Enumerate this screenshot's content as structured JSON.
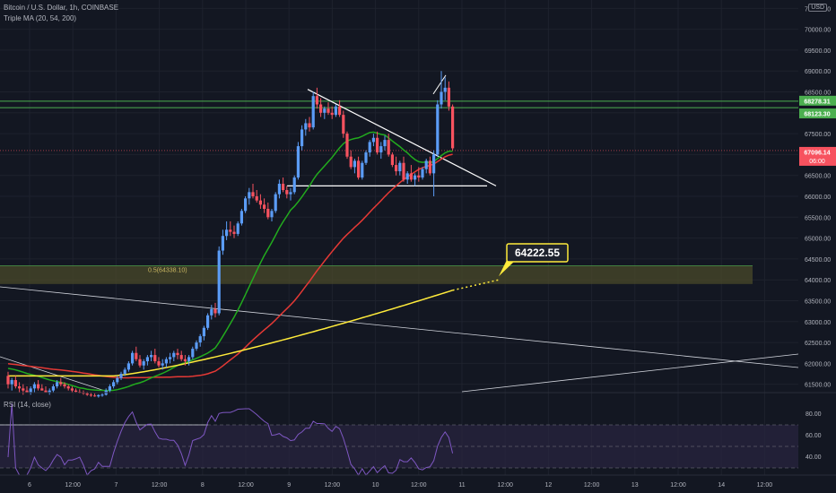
{
  "header": {
    "symbol_line": "Bitcoin / U.S. Dollar, 1h, COINBASE",
    "indicator_line": "Triple MA (20, 54, 200)"
  },
  "currency": "USD",
  "rsi": {
    "label": "RSI (14, close)",
    "ticks": [
      "80.00",
      "60.00",
      "40.00"
    ]
  },
  "chart_data": {
    "type": "candlestick",
    "symbol": "Bitcoin / U.S. Dollar",
    "interval": "1h",
    "exchange": "COINBASE",
    "price_axis": {
      "ticks": [
        "70500.00",
        "70000.00",
        "69500.00",
        "69000.00",
        "68500.00",
        "68000.00",
        "67500.00",
        "67000.00",
        "66500.00",
        "66000.00",
        "65500.00",
        "65000.00",
        "64500.00",
        "64000.00",
        "63500.00",
        "63000.00",
        "62500.00",
        "62000.00",
        "61500.00"
      ],
      "range": [
        61300,
        70700
      ]
    },
    "time_axis": {
      "ticks": [
        "6",
        "12:00",
        "7",
        "12:00",
        "8",
        "12:00",
        "9",
        "12:00",
        "10",
        "12:00",
        "11",
        "12:00",
        "12",
        "12:00",
        "13",
        "12:00",
        "14",
        "12:00"
      ]
    },
    "price_labels": [
      {
        "value": "68278.31",
        "color": "#4caf50"
      },
      {
        "value": "68123.30",
        "color": "#4caf50"
      },
      {
        "value": "67096.14",
        "sub": "06:00",
        "color": "#f7525f"
      }
    ],
    "annotations": {
      "fib_label": "0.5(64338.10)",
      "target_callout": "64222.55",
      "zone_range": [
        63900,
        64338.1
      ],
      "triangle_support": 66250
    },
    "series": [
      {
        "name": "MA 20",
        "color": "#22ab1e"
      },
      {
        "name": "MA 54",
        "color": "#e53935"
      },
      {
        "name": "MA 200",
        "color": "#ffeb3b"
      }
    ],
    "candles": [
      [
        61700,
        61800,
        61400,
        61500
      ],
      [
        61500,
        61650,
        61350,
        61600
      ],
      [
        61600,
        61700,
        61400,
        61450
      ],
      [
        61450,
        61550,
        61300,
        61400
      ],
      [
        61400,
        61500,
        61250,
        61350
      ],
      [
        61350,
        61450,
        61300,
        61300
      ],
      [
        61300,
        61450,
        61250,
        61400
      ],
      [
        61400,
        61550,
        61300,
        61500
      ],
      [
        61500,
        61600,
        61350,
        61400
      ],
      [
        61400,
        61500,
        61350,
        61350
      ],
      [
        61350,
        61450,
        61300,
        61300
      ],
      [
        61300,
        61400,
        61250,
        61350
      ],
      [
        61350,
        61500,
        61300,
        61450
      ],
      [
        61450,
        61600,
        61400,
        61550
      ],
      [
        61550,
        61650,
        61450,
        61500
      ],
      [
        61500,
        61550,
        61400,
        61450
      ],
      [
        61450,
        61500,
        61350,
        61400
      ],
      [
        61400,
        61450,
        61300,
        61350
      ],
      [
        61350,
        61400,
        61300,
        61320
      ],
      [
        61320,
        61380,
        61280,
        61300
      ],
      [
        61300,
        61350,
        61250,
        61280
      ],
      [
        61280,
        61320,
        61220,
        61250
      ],
      [
        61250,
        61300,
        61200,
        61230
      ],
      [
        61230,
        61280,
        61200,
        61210
      ],
      [
        61210,
        61260,
        61180,
        61240
      ],
      [
        61240,
        61280,
        61200,
        61250
      ],
      [
        61250,
        61400,
        61230,
        61350
      ],
      [
        61350,
        61500,
        61300,
        61450
      ],
      [
        61450,
        61600,
        61400,
        61550
      ],
      [
        61550,
        61700,
        61500,
        61650
      ],
      [
        61650,
        61800,
        61600,
        61750
      ],
      [
        61750,
        61900,
        61700,
        61850
      ],
      [
        61850,
        62050,
        61800,
        62000
      ],
      [
        62000,
        62300,
        61950,
        62250
      ],
      [
        62250,
        62400,
        62050,
        62100
      ],
      [
        62100,
        62200,
        61900,
        61950
      ],
      [
        61950,
        62100,
        61850,
        62050
      ],
      [
        62050,
        62200,
        61950,
        62150
      ],
      [
        62150,
        62300,
        62050,
        62200
      ],
      [
        62200,
        62350,
        62000,
        62050
      ],
      [
        62050,
        62150,
        61900,
        61950
      ],
      [
        61950,
        62100,
        61850,
        62000
      ],
      [
        62000,
        62150,
        61900,
        62100
      ],
      [
        62100,
        62250,
        62000,
        62150
      ],
      [
        62150,
        62300,
        62050,
        62250
      ],
      [
        62250,
        62350,
        62100,
        62200
      ],
      [
        62200,
        62300,
        62050,
        62100
      ],
      [
        62100,
        62200,
        61950,
        62050
      ],
      [
        62050,
        62200,
        61950,
        62150
      ],
      [
        62150,
        62400,
        62100,
        62350
      ],
      [
        62350,
        62550,
        62300,
        62500
      ],
      [
        62500,
        62700,
        62400,
        62650
      ],
      [
        62650,
        62900,
        62550,
        62850
      ],
      [
        62850,
        63200,
        62800,
        63150
      ],
      [
        63150,
        63400,
        63050,
        63300
      ],
      [
        63300,
        63450,
        63100,
        63200
      ],
      [
        63200,
        64800,
        63150,
        64700
      ],
      [
        64700,
        65200,
        64600,
        65050
      ],
      [
        65050,
        65400,
        64950,
        65200
      ],
      [
        65200,
        65400,
        65050,
        65150
      ],
      [
        65150,
        65300,
        65000,
        65100
      ],
      [
        65100,
        65400,
        65050,
        65350
      ],
      [
        65350,
        65700,
        65300,
        65650
      ],
      [
        65650,
        66000,
        65600,
        65950
      ],
      [
        65950,
        66200,
        65800,
        66100
      ],
      [
        66100,
        66300,
        65950,
        66000
      ],
      [
        66000,
        66150,
        65850,
        65900
      ],
      [
        65900,
        66050,
        65700,
        65800
      ],
      [
        65800,
        65950,
        65600,
        65700
      ],
      [
        65700,
        65850,
        65450,
        65500
      ],
      [
        65500,
        65700,
        65400,
        65650
      ],
      [
        65650,
        66100,
        65600,
        66050
      ],
      [
        66050,
        66400,
        65950,
        66300
      ],
      [
        66300,
        66450,
        66100,
        66150
      ],
      [
        66150,
        66250,
        65950,
        66050
      ],
      [
        66050,
        66200,
        65900,
        66100
      ],
      [
        66100,
        66500,
        66050,
        66450
      ],
      [
        66450,
        67300,
        66400,
        67200
      ],
      [
        67200,
        67700,
        67100,
        67600
      ],
      [
        67600,
        67850,
        67450,
        67750
      ],
      [
        67750,
        67900,
        67550,
        67650
      ],
      [
        67650,
        68500,
        67600,
        68400
      ],
      [
        68400,
        68600,
        68100,
        68200
      ],
      [
        68200,
        68350,
        67900,
        68000
      ],
      [
        68000,
        68150,
        67850,
        68100
      ],
      [
        68100,
        68250,
        67950,
        68000
      ],
      [
        68000,
        68150,
        67850,
        67950
      ],
      [
        67950,
        68200,
        67900,
        68150
      ],
      [
        68150,
        68300,
        67900,
        67950
      ],
      [
        67950,
        68050,
        67400,
        67500
      ],
      [
        67500,
        67550,
        66900,
        66950
      ],
      [
        66950,
        67100,
        66650,
        66700
      ],
      [
        66700,
        66900,
        66550,
        66850
      ],
      [
        66850,
        66950,
        66400,
        66450
      ],
      [
        66450,
        66850,
        66400,
        66800
      ],
      [
        66800,
        67100,
        66750,
        67050
      ],
      [
        67050,
        67350,
        66950,
        67300
      ],
      [
        67300,
        67500,
        67200,
        67400
      ],
      [
        67400,
        67550,
        67000,
        67050
      ],
      [
        67050,
        67300,
        66900,
        67200
      ],
      [
        67200,
        67450,
        67100,
        67350
      ],
      [
        67350,
        67500,
        66950,
        67000
      ],
      [
        67000,
        67050,
        66700,
        66750
      ],
      [
        66750,
        66950,
        66500,
        66600
      ],
      [
        66600,
        66850,
        66500,
        66800
      ],
      [
        66800,
        66950,
        66350,
        66400
      ],
      [
        66400,
        66600,
        66300,
        66550
      ],
      [
        66550,
        66750,
        66350,
        66400
      ],
      [
        66400,
        66550,
        66250,
        66500
      ],
      [
        66500,
        66700,
        66350,
        66450
      ],
      [
        66450,
        66700,
        66400,
        66650
      ],
      [
        66650,
        66900,
        66550,
        66850
      ],
      [
        66850,
        66950,
        66500,
        66550
      ],
      [
        66550,
        67100,
        66000,
        67000
      ],
      [
        67000,
        68300,
        66950,
        68200
      ],
      [
        68200,
        69000,
        68100,
        68500
      ],
      [
        68500,
        68850,
        68300,
        68600
      ],
      [
        68600,
        68750,
        68050,
        68150
      ],
      [
        68150,
        68200,
        67100,
        67150
      ]
    ]
  }
}
